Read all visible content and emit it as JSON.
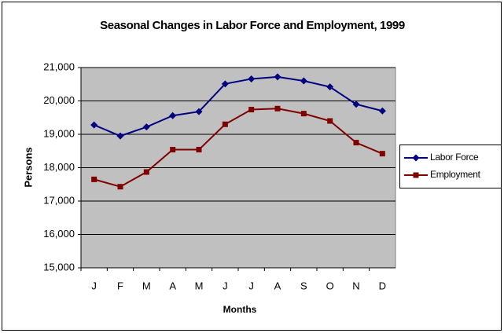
{
  "chart_data": {
    "type": "line",
    "title": "Seasonal Changes in Labor Force and Employment, 1999",
    "x_label": "Months",
    "y_label": "Persons",
    "categories": [
      "J",
      "F",
      "M",
      "A",
      "M",
      "J",
      "J",
      "A",
      "S",
      "O",
      "N",
      "D"
    ],
    "series": [
      {
        "name": "Labor Force",
        "color": "#000080",
        "marker": "diamond",
        "values": [
          19280,
          18950,
          19220,
          19560,
          19680,
          20510,
          20660,
          20720,
          20600,
          20420,
          19900,
          19700
        ]
      },
      {
        "name": "Employment",
        "color": "#800000",
        "marker": "square",
        "values": [
          17650,
          17430,
          17870,
          18540,
          18540,
          19300,
          19740,
          19770,
          19620,
          19400,
          18750,
          18420
        ]
      }
    ],
    "ylim": [
      15000,
      21000
    ],
    "yticks": [
      {
        "value": 15000,
        "label": "15,000"
      },
      {
        "value": 16000,
        "label": "16,000"
      },
      {
        "value": 17000,
        "label": "17,000"
      },
      {
        "value": 18000,
        "label": "18,000"
      },
      {
        "value": 19000,
        "label": "19,000"
      },
      {
        "value": 20000,
        "label": "20,000"
      },
      {
        "value": 21000,
        "label": "21,000"
      }
    ],
    "grid": true,
    "legend": "right"
  }
}
